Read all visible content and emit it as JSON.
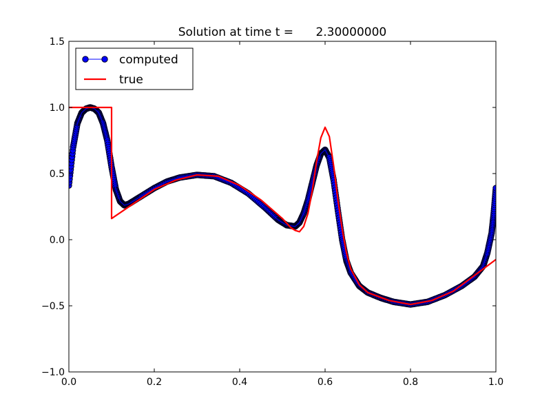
{
  "chart_data": {
    "type": "line",
    "title": "Solution at time t =      2.30000000",
    "xlabel": "",
    "ylabel": "",
    "xlim": [
      0.0,
      1.0
    ],
    "ylim": [
      -1.0,
      1.5
    ],
    "grid": false,
    "legend_position": "top-left",
    "x_ticks": [
      0.0,
      0.2,
      0.4,
      0.6,
      0.8,
      1.0
    ],
    "x_tick_labels": [
      "0.0",
      "0.2",
      "0.4",
      "0.6",
      "0.8",
      "1.0"
    ],
    "y_ticks": [
      -1.0,
      -0.5,
      0.0,
      0.5,
      1.0,
      1.5
    ],
    "y_tick_labels": [
      "−1.0",
      "−0.5",
      "0.0",
      "0.5",
      "1.0",
      "1.5"
    ],
    "series": [
      {
        "name": "computed",
        "color": "#0000ff",
        "marker": "circle",
        "x": [
          0.0,
          0.01,
          0.02,
          0.03,
          0.04,
          0.05,
          0.06,
          0.07,
          0.08,
          0.09,
          0.1,
          0.11,
          0.12,
          0.13,
          0.14,
          0.15,
          0.17,
          0.2,
          0.23,
          0.26,
          0.3,
          0.34,
          0.38,
          0.42,
          0.46,
          0.49,
          0.51,
          0.53,
          0.54,
          0.55,
          0.56,
          0.57,
          0.58,
          0.59,
          0.6,
          0.61,
          0.62,
          0.63,
          0.64,
          0.65,
          0.66,
          0.68,
          0.7,
          0.73,
          0.76,
          0.8,
          0.84,
          0.88,
          0.92,
          0.95,
          0.97,
          0.98,
          0.99,
          0.995,
          1.0
        ],
        "y": [
          0.41,
          0.7,
          0.88,
          0.96,
          0.99,
          1.0,
          0.99,
          0.96,
          0.88,
          0.75,
          0.55,
          0.38,
          0.29,
          0.26,
          0.27,
          0.29,
          0.33,
          0.39,
          0.44,
          0.47,
          0.49,
          0.48,
          0.43,
          0.35,
          0.24,
          0.15,
          0.11,
          0.1,
          0.13,
          0.2,
          0.3,
          0.43,
          0.56,
          0.65,
          0.68,
          0.62,
          0.45,
          0.22,
          0.0,
          -0.16,
          -0.25,
          -0.35,
          -0.4,
          -0.44,
          -0.47,
          -0.49,
          -0.47,
          -0.42,
          -0.35,
          -0.28,
          -0.2,
          -0.1,
          0.05,
          0.2,
          0.39
        ]
      },
      {
        "name": "true",
        "color": "#ff0000",
        "marker": "none",
        "x": [
          0.0,
          0.1,
          0.1,
          0.15,
          0.2,
          0.25,
          0.3,
          0.35,
          0.4,
          0.45,
          0.5,
          0.52,
          0.53,
          0.54,
          0.55,
          0.56,
          0.57,
          0.58,
          0.59,
          0.6,
          0.61,
          0.62,
          0.63,
          0.64,
          0.65,
          0.66,
          0.68,
          0.7,
          0.75,
          0.8,
          0.85,
          0.9,
          0.95,
          1.0
        ],
        "y": [
          1.0,
          1.0,
          0.16,
          0.27,
          0.38,
          0.45,
          0.49,
          0.48,
          0.41,
          0.3,
          0.16,
          0.09,
          0.07,
          0.06,
          0.1,
          0.2,
          0.37,
          0.59,
          0.77,
          0.85,
          0.78,
          0.56,
          0.3,
          0.08,
          -0.1,
          -0.22,
          -0.34,
          -0.4,
          -0.46,
          -0.49,
          -0.46,
          -0.39,
          -0.27,
          -0.15
        ]
      }
    ]
  }
}
